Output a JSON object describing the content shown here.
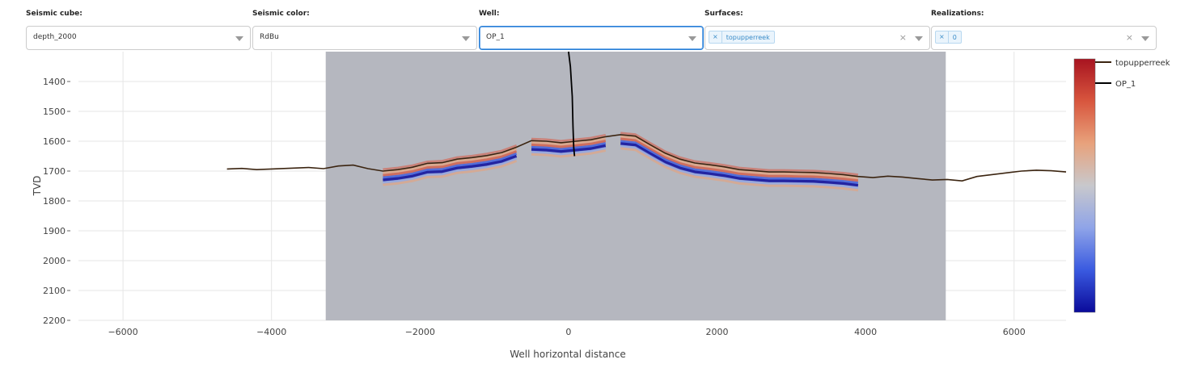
{
  "controls": {
    "seismic_cube": {
      "label": "Seismic cube:",
      "value": "depth_2000"
    },
    "seismic_color": {
      "label": "Seismic color:",
      "value": "RdBu"
    },
    "well": {
      "label": "Well:",
      "value": "OP_1"
    },
    "surfaces": {
      "label": "Surfaces:",
      "tag": "topupperreek",
      "clear": "×"
    },
    "realizations": {
      "label": "Realizations:",
      "tag": "0",
      "clear": "×"
    }
  },
  "legend": {
    "items": [
      "topupperreek",
      "OP_1"
    ]
  },
  "colors": {
    "seismic_background": "#b5b7bf",
    "surface_line": "#3b2410",
    "well_line": "#000000",
    "grid": "#e6e6e6",
    "colorscale": [
      "#0a0a9a",
      "#3a5ae0",
      "#8fa4e8",
      "#c8c8cc",
      "#e8a27c",
      "#d8563e",
      "#a81420"
    ]
  },
  "chart_data": {
    "type": "line",
    "xlabel": "Well horizontal distance",
    "ylabel": "TVD",
    "xlim": [
      -6600,
      6700
    ],
    "ylim": [
      2200,
      1300
    ],
    "y_reversed": true,
    "xticks": [
      -6000,
      -4000,
      -2000,
      0,
      2000,
      4000,
      6000
    ],
    "yticks": [
      1400,
      1500,
      1600,
      1700,
      1800,
      1900,
      2000,
      2100,
      2200
    ],
    "seismic_extent_x": [
      -3270,
      5080
    ],
    "series": [
      {
        "name": "topupperreek",
        "x": [
          -4600,
          -4400,
          -4200,
          -4000,
          -3700,
          -3500,
          -3300,
          -3100,
          -2900,
          -2700,
          -2500,
          -2300,
          -2100,
          -1900,
          -1700,
          -1500,
          -1300,
          -1100,
          -900,
          -700,
          -500,
          -300,
          -100,
          100,
          300,
          500,
          700,
          900,
          1100,
          1300,
          1500,
          1700,
          1900,
          2100,
          2300,
          2500,
          2700,
          2900,
          3100,
          3300,
          3500,
          3700,
          3900,
          4100,
          4300,
          4500,
          4700,
          4900,
          5100,
          5300,
          5500,
          5700,
          5900,
          6100,
          6300,
          6500,
          6700
        ],
        "y": [
          1693,
          1691,
          1695,
          1693,
          1690,
          1688,
          1692,
          1683,
          1680,
          1692,
          1700,
          1695,
          1687,
          1674,
          1672,
          1660,
          1655,
          1648,
          1638,
          1620,
          1598,
          1600,
          1605,
          1600,
          1595,
          1585,
          1578,
          1583,
          1612,
          1640,
          1660,
          1673,
          1679,
          1686,
          1695,
          1699,
          1703,
          1703,
          1704,
          1705,
          1708,
          1712,
          1718,
          1722,
          1717,
          1720,
          1725,
          1730,
          1728,
          1733,
          1718,
          1712,
          1706,
          1700,
          1697,
          1699,
          1703
        ]
      },
      {
        "name": "OP_1",
        "x": [
          0,
          25,
          50,
          60,
          70,
          80
        ],
        "y": [
          1300,
          1350,
          1450,
          1550,
          1620,
          1650
        ]
      }
    ],
    "colorscale_name": "RdBu"
  }
}
